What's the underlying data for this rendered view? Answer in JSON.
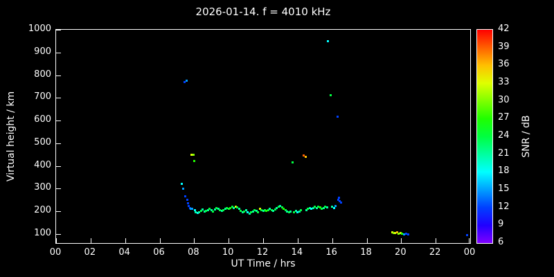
{
  "title": "2026-01-14. f = 4010 kHz",
  "axes": {
    "x_label": "UT Time / hrs",
    "y_label": "Virtual height / km",
    "x_tick_hours": [
      0,
      2,
      4,
      6,
      8,
      10,
      12,
      14,
      16,
      18,
      20,
      22,
      24
    ],
    "x_tick_labels": [
      "00",
      "02",
      "04",
      "06",
      "08",
      "10",
      "12",
      "14",
      "16",
      "18",
      "20",
      "22",
      "00"
    ],
    "y_tick_values": [
      1000,
      900,
      800,
      700,
      600,
      500,
      400,
      300,
      200,
      100
    ],
    "y_tick_labels": [
      "1000",
      "900",
      "800",
      "700",
      "600",
      "500",
      "400",
      "300",
      "200",
      "100"
    ]
  },
  "colorbar": {
    "label": "SNR / dB",
    "min": 6,
    "max": 42,
    "ticks": [
      42,
      39,
      36,
      33,
      30,
      27,
      24,
      21,
      18,
      15,
      12,
      9,
      6
    ]
  },
  "chart_data": {
    "type": "scatter",
    "title": "2026-01-14. f = 4010 kHz",
    "xlabel": "UT Time / hrs",
    "ylabel": "Virtual height / km",
    "xlim": [
      0,
      24
    ],
    "ylim": [
      60,
      1000
    ],
    "grid": false,
    "colorbar_label": "SNR / dB",
    "snr_range": [
      6,
      42
    ],
    "point_format": "[ut_hours, virtual_height_km, snr_db]",
    "points": [
      [
        7.3,
        320,
        18
      ],
      [
        7.35,
        300,
        15
      ],
      [
        7.45,
        770,
        12
      ],
      [
        7.55,
        775,
        15
      ],
      [
        7.5,
        265,
        12
      ],
      [
        7.6,
        250,
        12
      ],
      [
        7.65,
        235,
        12
      ],
      [
        7.7,
        222,
        12
      ],
      [
        7.75,
        215,
        12
      ],
      [
        7.8,
        212,
        15
      ],
      [
        7.85,
        450,
        33
      ],
      [
        7.95,
        448,
        30
      ],
      [
        8.0,
        422,
        27
      ],
      [
        7.9,
        212,
        15
      ],
      [
        8.05,
        205,
        18
      ],
      [
        8.1,
        196,
        21
      ],
      [
        8.2,
        192,
        18
      ],
      [
        8.3,
        196,
        21
      ],
      [
        8.4,
        203,
        24
      ],
      [
        8.5,
        207,
        21
      ],
      [
        8.6,
        198,
        21
      ],
      [
        8.7,
        201,
        24
      ],
      [
        8.8,
        206,
        21
      ],
      [
        8.9,
        211,
        24
      ],
      [
        9.0,
        206,
        21
      ],
      [
        9.1,
        200,
        24
      ],
      [
        9.2,
        209,
        21
      ],
      [
        9.3,
        214,
        24
      ],
      [
        9.4,
        210,
        21
      ],
      [
        9.5,
        206,
        24
      ],
      [
        9.6,
        201,
        21
      ],
      [
        9.7,
        206,
        24
      ],
      [
        9.8,
        211,
        21
      ],
      [
        9.9,
        214,
        24
      ],
      [
        10.0,
        211,
        24
      ],
      [
        10.1,
        215,
        27
      ],
      [
        10.2,
        219,
        24
      ],
      [
        10.3,
        214,
        21
      ],
      [
        10.4,
        220,
        33
      ],
      [
        10.5,
        216,
        24
      ],
      [
        10.6,
        210,
        21
      ],
      [
        10.7,
        201,
        24
      ],
      [
        10.8,
        196,
        21
      ],
      [
        10.9,
        200,
        24
      ],
      [
        11.0,
        205,
        21
      ],
      [
        11.1,
        196,
        18
      ],
      [
        11.2,
        191,
        21
      ],
      [
        11.3,
        196,
        24
      ],
      [
        11.4,
        200,
        21
      ],
      [
        11.5,
        206,
        24
      ],
      [
        11.6,
        201,
        21
      ],
      [
        11.7,
        196,
        24
      ],
      [
        11.8,
        210,
        33
      ],
      [
        11.9,
        206,
        24
      ],
      [
        12.0,
        201,
        21
      ],
      [
        12.1,
        206,
        24
      ],
      [
        12.2,
        201,
        27
      ],
      [
        12.3,
        206,
        24
      ],
      [
        12.4,
        211,
        21
      ],
      [
        12.5,
        206,
        24
      ],
      [
        12.6,
        201,
        21
      ],
      [
        12.7,
        209,
        24
      ],
      [
        12.8,
        214,
        21
      ],
      [
        12.9,
        219,
        24
      ],
      [
        13.0,
        224,
        21
      ],
      [
        13.1,
        216,
        24
      ],
      [
        13.2,
        211,
        27
      ],
      [
        13.3,
        206,
        24
      ],
      [
        13.4,
        200,
        21
      ],
      [
        13.5,
        196,
        24
      ],
      [
        13.6,
        200,
        21
      ],
      [
        13.7,
        415,
        24
      ],
      [
        13.8,
        196,
        24
      ],
      [
        13.9,
        201,
        21
      ],
      [
        14.0,
        196,
        18
      ],
      [
        14.1,
        200,
        21
      ],
      [
        14.2,
        206,
        24
      ],
      [
        14.35,
        446,
        39
      ],
      [
        14.45,
        440,
        36
      ],
      [
        14.5,
        206,
        21
      ],
      [
        14.6,
        211,
        24
      ],
      [
        14.7,
        215,
        21
      ],
      [
        14.8,
        211,
        18
      ],
      [
        14.9,
        215,
        21
      ],
      [
        15.0,
        219,
        24
      ],
      [
        15.1,
        215,
        21
      ],
      [
        15.2,
        219,
        24
      ],
      [
        15.3,
        216,
        27
      ],
      [
        15.4,
        211,
        24
      ],
      [
        15.5,
        215,
        21
      ],
      [
        15.6,
        219,
        24
      ],
      [
        15.7,
        216,
        21
      ],
      [
        15.75,
        950,
        18
      ],
      [
        15.9,
        712,
        24
      ],
      [
        16.0,
        219,
        21
      ],
      [
        16.1,
        215,
        18
      ],
      [
        16.2,
        224,
        15
      ],
      [
        16.3,
        618,
        12
      ],
      [
        16.35,
        252,
        12
      ],
      [
        16.4,
        260,
        12
      ],
      [
        16.45,
        246,
        12
      ],
      [
        16.5,
        240,
        12
      ],
      [
        19.5,
        106,
        33
      ],
      [
        19.55,
        103,
        30
      ],
      [
        19.65,
        104,
        33
      ],
      [
        19.75,
        106,
        36
      ],
      [
        19.85,
        101,
        30
      ],
      [
        19.95,
        104,
        33
      ],
      [
        20.05,
        101,
        27
      ],
      [
        20.15,
        98,
        15
      ],
      [
        20.3,
        100,
        12
      ],
      [
        20.4,
        97,
        12
      ],
      [
        23.8,
        95,
        12
      ]
    ]
  }
}
